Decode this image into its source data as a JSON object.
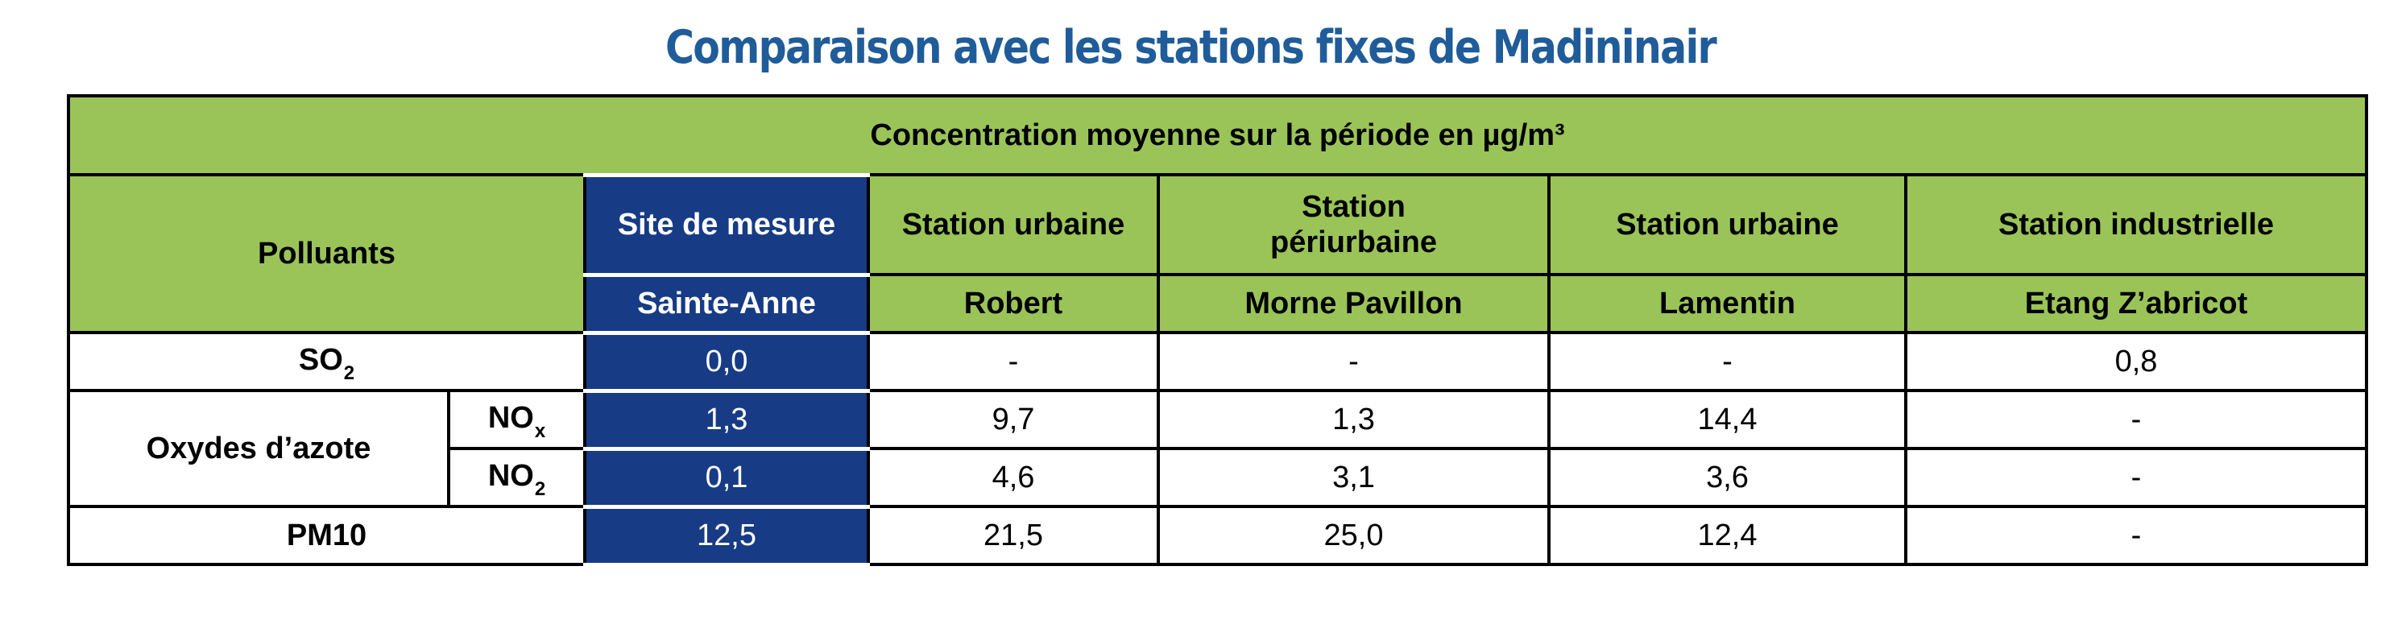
{
  "title": "Comparaison avec les stations fixes de Madininair",
  "table": {
    "main_header": "Concentration moyenne sur la période en µg/m³",
    "pollutants_header": "Polluants",
    "site_header": "Site de mesure",
    "site_name": "Sainte-Anne",
    "stations": [
      {
        "type": "Station urbaine",
        "name": "Robert"
      },
      {
        "type": "Station périurbaine",
        "name": "Morne Pavillon"
      },
      {
        "type": "Station urbaine",
        "name": "Lamentin"
      },
      {
        "type": "Station industrielle",
        "name": "Etang Z’abricot"
      }
    ],
    "rows": {
      "so2": {
        "label": "SO",
        "sub": "2",
        "values": [
          "0,0",
          "-",
          "-",
          "-",
          "0,8"
        ]
      },
      "nox_group": "Oxydes d’azote",
      "nox": {
        "label": "NO",
        "sub": "x",
        "values": [
          "1,3",
          "9,7",
          "1,3",
          "14,4",
          "-"
        ]
      },
      "no2": {
        "label": "NO",
        "sub": "2",
        "values": [
          "0,1",
          "4,6",
          "3,1",
          "3,6",
          "-"
        ]
      },
      "pm10": {
        "label": "PM10",
        "values": [
          "12,5",
          "21,5",
          "25,0",
          "12,4",
          "-"
        ]
      }
    }
  },
  "colors": {
    "title": "#1f5c99",
    "header_green": "#9bc458",
    "site_blue": "#173b85"
  }
}
